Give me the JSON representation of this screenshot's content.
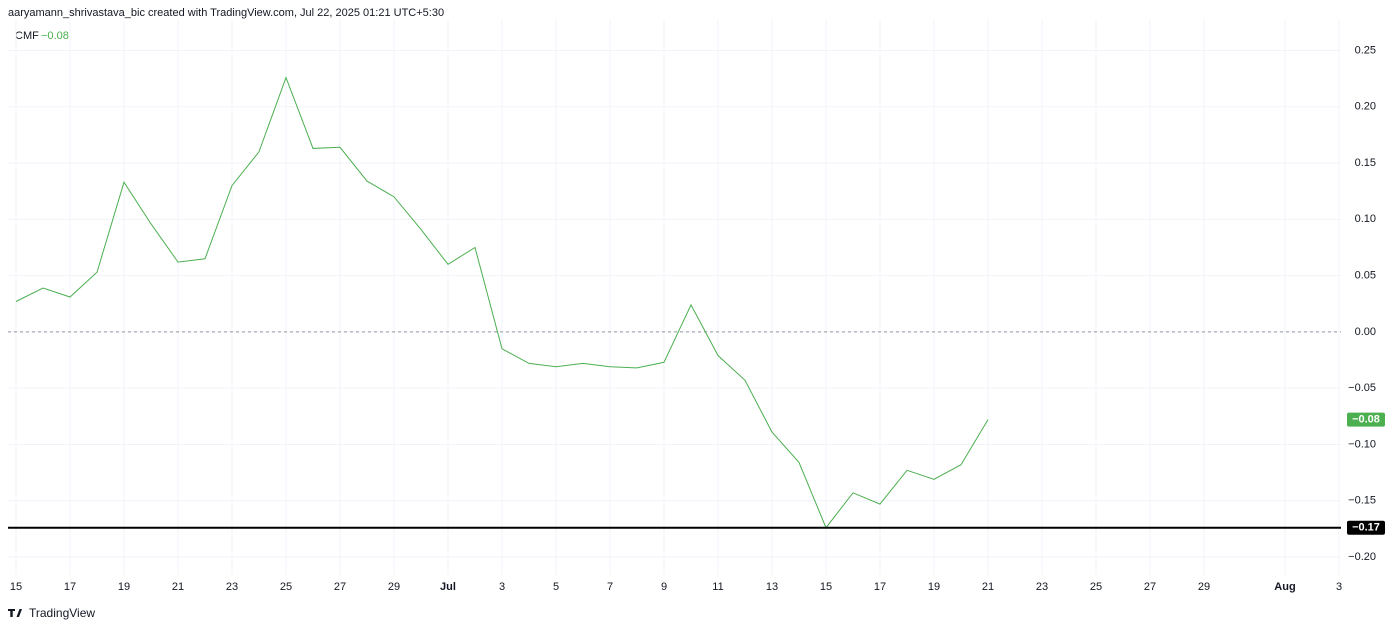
{
  "header": "aaryamann_shrivastava_bic created with TradingView.com, Jul 22, 2025 01:21 UTC+5:30",
  "footer": "TradingView",
  "chart_data": {
    "type": "line",
    "legend_name": "CMF",
    "current_value": {
      "value": -0.078,
      "label": "−0.08"
    },
    "x": [
      "2025-06-15",
      "2025-06-16",
      "2025-06-17",
      "2025-06-18",
      "2025-06-19",
      "2025-06-20",
      "2025-06-21",
      "2025-06-22",
      "2025-06-23",
      "2025-06-24",
      "2025-06-25",
      "2025-06-26",
      "2025-06-27",
      "2025-06-28",
      "2025-06-29",
      "2025-06-30",
      "2025-07-01",
      "2025-07-02",
      "2025-07-03",
      "2025-07-04",
      "2025-07-05",
      "2025-07-06",
      "2025-07-07",
      "2025-07-08",
      "2025-07-09",
      "2025-07-10",
      "2025-07-11",
      "2025-07-12",
      "2025-07-13",
      "2025-07-14",
      "2025-07-15",
      "2025-07-16",
      "2025-07-17",
      "2025-07-18",
      "2025-07-19",
      "2025-07-20",
      "2025-07-21"
    ],
    "series": [
      {
        "name": "CMF",
        "color": "#4caf50",
        "values": [
          0.027,
          0.039,
          0.031,
          0.053,
          0.133,
          0.096,
          0.062,
          0.065,
          0.13,
          0.16,
          0.226,
          0.163,
          0.164,
          0.134,
          0.12,
          0.091,
          0.06,
          0.075,
          -0.015,
          -0.028,
          -0.031,
          -0.028,
          -0.031,
          -0.032,
          -0.027,
          0.024,
          -0.021,
          -0.043,
          -0.089,
          -0.116,
          -0.174,
          -0.143,
          -0.153,
          -0.123,
          -0.131,
          -0.118,
          -0.078
        ]
      }
    ],
    "hline": {
      "value": -0.174,
      "label": "−0.17",
      "color": "#000000"
    },
    "zero_line": 0,
    "xlim": [
      "2025-06-15",
      "2025-08-03"
    ],
    "xticks": [
      {
        "value": "2025-06-15",
        "label": "15"
      },
      {
        "value": "2025-06-17",
        "label": "17"
      },
      {
        "value": "2025-06-19",
        "label": "19"
      },
      {
        "value": "2025-06-21",
        "label": "21"
      },
      {
        "value": "2025-06-23",
        "label": "23"
      },
      {
        "value": "2025-06-25",
        "label": "25"
      },
      {
        "value": "2025-06-27",
        "label": "27"
      },
      {
        "value": "2025-06-29",
        "label": "29"
      },
      {
        "value": "2025-07-01",
        "label": "Jul"
      },
      {
        "value": "2025-07-03",
        "label": "3"
      },
      {
        "value": "2025-07-05",
        "label": "5"
      },
      {
        "value": "2025-07-07",
        "label": "7"
      },
      {
        "value": "2025-07-09",
        "label": "9"
      },
      {
        "value": "2025-07-11",
        "label": "11"
      },
      {
        "value": "2025-07-13",
        "label": "13"
      },
      {
        "value": "2025-07-15",
        "label": "15"
      },
      {
        "value": "2025-07-17",
        "label": "17"
      },
      {
        "value": "2025-07-19",
        "label": "19"
      },
      {
        "value": "2025-07-21",
        "label": "21"
      },
      {
        "value": "2025-07-23",
        "label": "23"
      },
      {
        "value": "2025-07-25",
        "label": "25"
      },
      {
        "value": "2025-07-27",
        "label": "27"
      },
      {
        "value": "2025-07-29",
        "label": "29"
      },
      {
        "value": "2025-08-01",
        "label": "Aug"
      },
      {
        "value": "2025-08-03",
        "label": "3"
      }
    ],
    "ylim": [
      -0.216,
      0.27
    ],
    "yticks": [
      0.25,
      {
        "value": 0.2,
        "label": "0.20"
      },
      0.15,
      {
        "value": 0.1,
        "label": "0.10"
      },
      0.05,
      {
        "value": 0,
        "label": "0.00"
      },
      {
        "value": -0.05,
        "label": "−0.05"
      },
      {
        "value": -0.1,
        "label": "−0.10"
      },
      {
        "value": -0.15,
        "label": "−0.15"
      },
      {
        "value": -0.2,
        "label": "−0.20"
      }
    ],
    "grid": true
  }
}
